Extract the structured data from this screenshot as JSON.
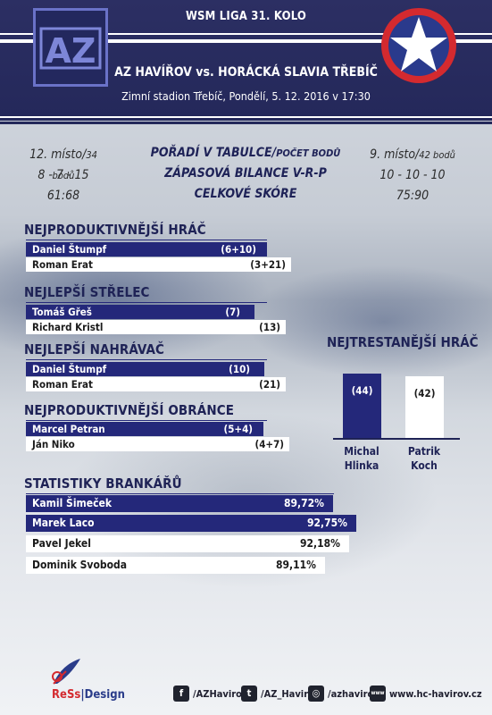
{
  "header": {
    "league": "WSM LIGA 31. KOLO",
    "match": "AZ HAVÍŘOV vs. HORÁCKÁ SLAVIA TŘEBÍČ",
    "venue": "Zimní stadion Třebíč, Pondělí, 5. 12. 2016 v 17:30",
    "logo_left_text": "AZ"
  },
  "comparison": {
    "left": {
      "rank": "12. místo",
      "points": "34 bodů",
      "record": "8 - 7 - 15",
      "score": "61:68"
    },
    "center": {
      "row1_main": "POŘADÍ V TABULCE/",
      "row1_small": "POČET BODŮ",
      "row2": "ZÁPASOVÁ BILANCE V-R-P",
      "row3": "CELKOVÉ SKÓRE"
    },
    "right": {
      "rank": "9. místo",
      "points": "42 bodů",
      "record": "10 - 10 - 10",
      "score": "75:90"
    }
  },
  "sections": {
    "productive": {
      "title": "NEJPRODUKTIVNĚJŠÍ HRÁČ",
      "home": {
        "name": "Daniel Štumpf",
        "value": "(6+10)"
      },
      "away": {
        "name": "Roman Erat",
        "value": "(3+21)"
      }
    },
    "scorer": {
      "title": "NEJLEPŠÍ STŘELEC",
      "home": {
        "name": "Tomáš Gřeš",
        "value": "(7)"
      },
      "away": {
        "name": "Richard Kristl",
        "value": "(13)"
      }
    },
    "assist": {
      "title": "NEJLEPŠÍ NAHRÁVAČ",
      "home": {
        "name": "Daniel Štumpf",
        "value": "(10)"
      },
      "away": {
        "name": "Roman Erat",
        "value": "(21)"
      }
    },
    "defense": {
      "title": "NEJPRODUKTIVNĚJŠÍ OBRÁNCE",
      "home": {
        "name": "Marcel Petran",
        "value": "(5+4)"
      },
      "away": {
        "name": "Ján Niko",
        "value": "(4+7)"
      }
    }
  },
  "goalies": {
    "title": "STATISTIKY BRANKÁŘŮ",
    "rows": [
      {
        "name": "Kamil Šimeček",
        "value": "89,72%",
        "team": "home"
      },
      {
        "name": "Marek Laco",
        "value": "92,75%",
        "team": "home"
      },
      {
        "name": "Pavel Jekel",
        "value": "92,18%",
        "team": "away"
      },
      {
        "name": "Dominik Svoboda",
        "value": "89,11%",
        "team": "away"
      }
    ]
  },
  "penalty": {
    "title": "NEJTRESTANĚJŠÍ HRÁČ",
    "home": {
      "first": "Michal",
      "last": "Hlinka",
      "value": "(44)",
      "minutes": 44
    },
    "away": {
      "first": "Patrik",
      "last": "Koch",
      "value": "(42)",
      "minutes": 42
    }
  },
  "footer": {
    "brand_a": "ReSs",
    "brand_sep": "|",
    "brand_b": "Design",
    "facebook": "/AZHavirov",
    "twitter": "/AZ_Havirov",
    "instagram": "/azhavirov",
    "web": "www.hc-havirov.cz"
  },
  "colors": {
    "navy": "#24287a",
    "header": "#2c2f63",
    "star_red": "#d42a2f"
  }
}
